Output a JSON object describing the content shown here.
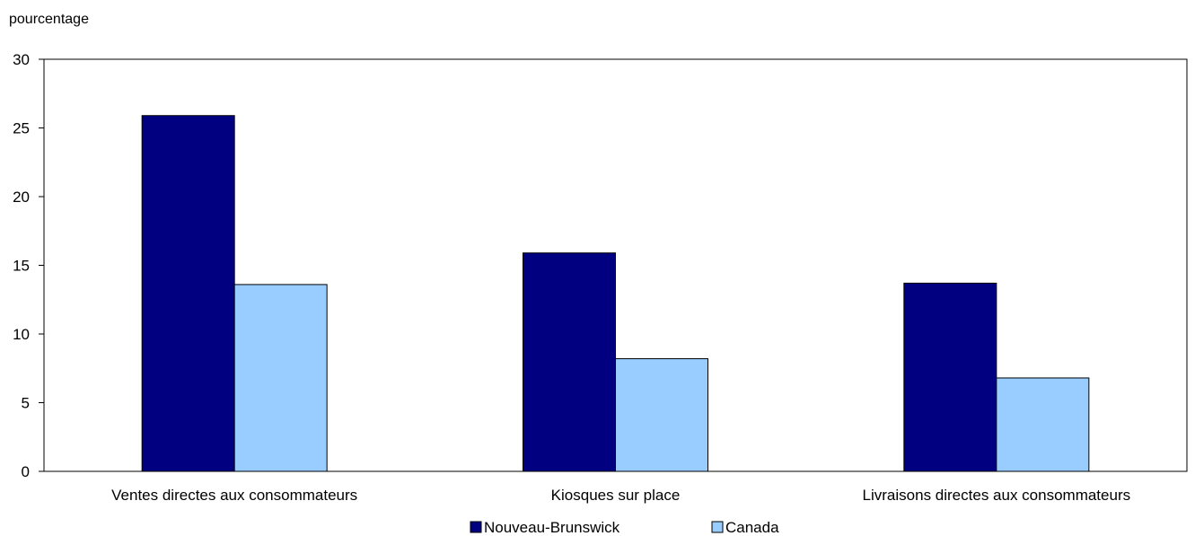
{
  "chart_data": {
    "type": "bar",
    "ylabel": "pourcentage",
    "xlabel": "",
    "title": "",
    "ylim": [
      0,
      30
    ],
    "yticks": [
      0,
      5,
      10,
      15,
      20,
      25,
      30
    ],
    "grid": false,
    "legend_position": "bottom-center",
    "categories": [
      "Ventes directes aux consommateurs",
      "Kiosques sur place",
      "Livraisons directes aux consommateurs"
    ],
    "series": [
      {
        "name": "Nouveau-Brunswick",
        "color": "#000080",
        "values": [
          25.9,
          15.9,
          13.7
        ]
      },
      {
        "name": "Canada",
        "color": "#99ccff",
        "values": [
          13.6,
          8.2,
          6.8
        ]
      }
    ]
  }
}
